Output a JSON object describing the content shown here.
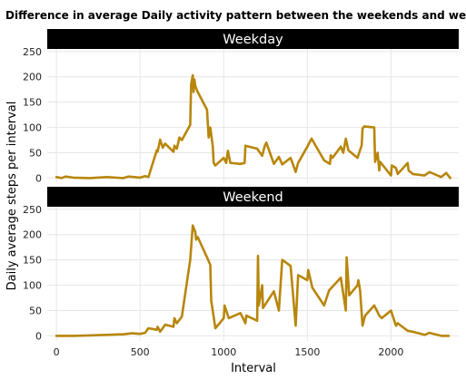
{
  "chart_data": {
    "type": "line",
    "title": "Difference in average Daily activity pattern between the weekends and weekdays",
    "xlabel": "Interval",
    "ylabel": "Daily average steps per interval",
    "xlim": [
      -55,
      2405
    ],
    "ylim": [
      -10,
      255
    ],
    "xticks": [
      0,
      500,
      1000,
      1500,
      2000
    ],
    "yticks": [
      0,
      50,
      100,
      150,
      200,
      250
    ],
    "grid": true,
    "line_color": "#b8860b",
    "panels": [
      {
        "name": "Weekday",
        "x": [
          0,
          30,
          55,
          100,
          200,
          300,
          400,
          430,
          500,
          530,
          550,
          600,
          605,
          620,
          635,
          650,
          700,
          705,
          720,
          735,
          750,
          800,
          805,
          815,
          820,
          825,
          830,
          845,
          900,
          910,
          920,
          935,
          940,
          950,
          1000,
          1015,
          1025,
          1040,
          1100,
          1125,
          1130,
          1200,
          1230,
          1245,
          1255,
          1300,
          1330,
          1350,
          1400,
          1430,
          1445,
          1500,
          1525,
          1600,
          1635,
          1640,
          1650,
          1700,
          1715,
          1730,
          1745,
          1800,
          1825,
          1830,
          1840,
          1900,
          1905,
          1920,
          1930,
          1935,
          2000,
          2005,
          2030,
          2040,
          2100,
          2105,
          2130,
          2200,
          2230,
          2300,
          2330,
          2355
        ],
        "y": [
          2,
          0,
          3,
          1,
          0,
          2,
          0,
          3,
          1,
          4,
          2,
          55,
          52,
          76,
          60,
          68,
          52,
          64,
          58,
          80,
          75,
          105,
          185,
          203,
          170,
          195,
          182,
          170,
          135,
          80,
          100,
          62,
          30,
          25,
          40,
          30,
          54,
          30,
          28,
          30,
          64,
          58,
          44,
          63,
          70,
          28,
          42,
          27,
          40,
          12,
          30,
          62,
          78,
          35,
          28,
          45,
          40,
          62,
          50,
          78,
          55,
          40,
          65,
          98,
          102,
          100,
          32,
          50,
          15,
          32,
          5,
          25,
          20,
          8,
          30,
          15,
          8,
          5,
          12,
          2,
          10,
          0
        ]
      },
      {
        "name": "Weekend",
        "x": [
          0,
          100,
          200,
          300,
          400,
          450,
          500,
          530,
          550,
          600,
          605,
          620,
          650,
          700,
          705,
          720,
          750,
          800,
          815,
          830,
          835,
          845,
          900,
          920,
          925,
          950,
          1000,
          1005,
          1030,
          1100,
          1130,
          1135,
          1200,
          1205,
          1210,
          1230,
          1235,
          1300,
          1330,
          1350,
          1400,
          1430,
          1445,
          1500,
          1505,
          1530,
          1600,
          1630,
          1700,
          1730,
          1735,
          1750,
          1800,
          1805,
          1815,
          1830,
          1845,
          1900,
          1915,
          1930,
          1945,
          2000,
          2005,
          2030,
          2040,
          2100,
          2130,
          2200,
          2230,
          2300,
          2345
        ],
        "y": [
          0,
          0,
          1,
          2,
          3,
          5,
          4,
          6,
          15,
          12,
          18,
          8,
          22,
          18,
          35,
          25,
          38,
          150,
          218,
          205,
          190,
          195,
          155,
          140,
          70,
          15,
          35,
          60,
          35,
          45,
          25,
          40,
          30,
          158,
          60,
          100,
          55,
          88,
          50,
          150,
          138,
          20,
          120,
          110,
          130,
          95,
          60,
          90,
          115,
          50,
          155,
          80,
          100,
          110,
          90,
          20,
          40,
          60,
          50,
          40,
          35,
          50,
          45,
          20,
          25,
          10,
          8,
          2,
          6,
          0,
          0
        ]
      }
    ]
  }
}
